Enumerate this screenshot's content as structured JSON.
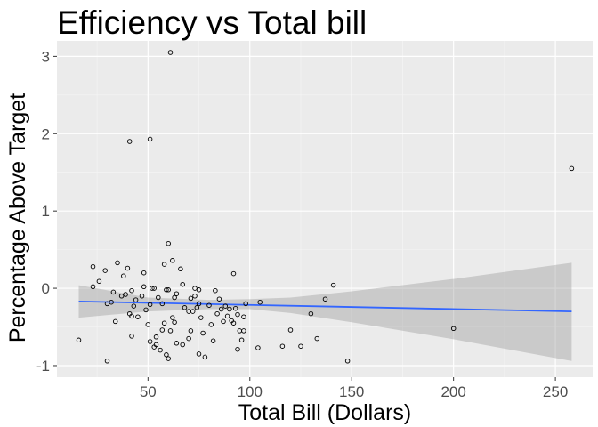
{
  "chart_data": {
    "type": "scatter",
    "title": "Efficiency vs Total bill",
    "xlabel": "Total Bill (Dollars)",
    "ylabel": "Percentage Above Target",
    "xlim": [
      5.3,
      268.3
    ],
    "ylim": [
      -1.15,
      3.2
    ],
    "x_ticks": [
      50,
      100,
      150,
      200,
      250
    ],
    "y_ticks": [
      -1,
      0,
      1,
      2,
      3
    ],
    "grid": true,
    "legend": "none",
    "colors": {
      "panel_background": "#ebebeb",
      "grid_major": "#ffffff",
      "grid_minor": "#f5f5f5",
      "points": "#000000",
      "trend_line": "#3366ff",
      "confidence_band": "#999999"
    },
    "points": [
      {
        "x": 16,
        "y": -0.67
      },
      {
        "x": 23,
        "y": 0.28
      },
      {
        "x": 23,
        "y": 0.02
      },
      {
        "x": 26,
        "y": 0.09
      },
      {
        "x": 29,
        "y": 0.23
      },
      {
        "x": 30,
        "y": -0.94
      },
      {
        "x": 30,
        "y": -0.2
      },
      {
        "x": 32,
        "y": -0.18
      },
      {
        "x": 33,
        "y": -0.05
      },
      {
        "x": 34,
        "y": -0.43
      },
      {
        "x": 35,
        "y": 0.33
      },
      {
        "x": 37,
        "y": -0.1
      },
      {
        "x": 38,
        "y": 0.16
      },
      {
        "x": 39,
        "y": -0.08
      },
      {
        "x": 40,
        "y": 0.26
      },
      {
        "x": 41,
        "y": -0.33
      },
      {
        "x": 41,
        "y": 1.9
      },
      {
        "x": 42,
        "y": -0.36
      },
      {
        "x": 42,
        "y": -0.03
      },
      {
        "x": 42,
        "y": -0.62
      },
      {
        "x": 43,
        "y": -0.23
      },
      {
        "x": 44,
        "y": -0.15
      },
      {
        "x": 45,
        "y": -0.37
      },
      {
        "x": 47,
        "y": -0.1
      },
      {
        "x": 48,
        "y": 0.02
      },
      {
        "x": 48,
        "y": 0.2
      },
      {
        "x": 49,
        "y": -0.28
      },
      {
        "x": 50,
        "y": -0.47
      },
      {
        "x": 51,
        "y": -0.69
      },
      {
        "x": 51,
        "y": -0.21
      },
      {
        "x": 51,
        "y": 1.93
      },
      {
        "x": 52,
        "y": 0.0
      },
      {
        "x": 53,
        "y": 0.0
      },
      {
        "x": 53,
        "y": -0.76
      },
      {
        "x": 54,
        "y": -0.63
      },
      {
        "x": 54,
        "y": -0.73
      },
      {
        "x": 55,
        "y": -0.12
      },
      {
        "x": 56,
        "y": -0.8
      },
      {
        "x": 57,
        "y": -0.2
      },
      {
        "x": 57,
        "y": -0.54
      },
      {
        "x": 58,
        "y": 0.31
      },
      {
        "x": 58,
        "y": -0.45
      },
      {
        "x": 59,
        "y": -0.86
      },
      {
        "x": 59,
        "y": -0.02
      },
      {
        "x": 60,
        "y": 0.58
      },
      {
        "x": 60,
        "y": -0.02
      },
      {
        "x": 60,
        "y": -0.91
      },
      {
        "x": 61,
        "y": -0.55
      },
      {
        "x": 61,
        "y": 3.05
      },
      {
        "x": 62,
        "y": 0.36
      },
      {
        "x": 62,
        "y": -0.38
      },
      {
        "x": 63,
        "y": -0.44
      },
      {
        "x": 63,
        "y": -0.12
      },
      {
        "x": 64,
        "y": -0.07
      },
      {
        "x": 64,
        "y": -0.71
      },
      {
        "x": 66,
        "y": 0.25
      },
      {
        "x": 67,
        "y": 0.05
      },
      {
        "x": 67,
        "y": -0.73
      },
      {
        "x": 68,
        "y": -0.25
      },
      {
        "x": 70,
        "y": -0.3
      },
      {
        "x": 70,
        "y": -0.65
      },
      {
        "x": 71,
        "y": -0.13
      },
      {
        "x": 71,
        "y": -0.55
      },
      {
        "x": 72,
        "y": -0.3
      },
      {
        "x": 73,
        "y": 0.0
      },
      {
        "x": 73,
        "y": -0.1
      },
      {
        "x": 74,
        "y": -0.25
      },
      {
        "x": 75,
        "y": -0.2
      },
      {
        "x": 75,
        "y": -0.85
      },
      {
        "x": 75,
        "y": -0.02
      },
      {
        "x": 76,
        "y": -0.38
      },
      {
        "x": 77,
        "y": -0.58
      },
      {
        "x": 78,
        "y": -0.89
      },
      {
        "x": 80,
        "y": -0.22
      },
      {
        "x": 81,
        "y": -0.47
      },
      {
        "x": 82,
        "y": -0.68
      },
      {
        "x": 83,
        "y": -0.03
      },
      {
        "x": 84,
        "y": -0.33
      },
      {
        "x": 85,
        "y": -0.14
      },
      {
        "x": 86,
        "y": -0.27
      },
      {
        "x": 87,
        "y": -0.43
      },
      {
        "x": 88,
        "y": -0.23
      },
      {
        "x": 89,
        "y": -0.36
      },
      {
        "x": 90,
        "y": -0.27
      },
      {
        "x": 91,
        "y": -0.42
      },
      {
        "x": 92,
        "y": 0.19
      },
      {
        "x": 92,
        "y": -0.45
      },
      {
        "x": 93,
        "y": -0.26
      },
      {
        "x": 94,
        "y": -0.79
      },
      {
        "x": 94,
        "y": -0.34
      },
      {
        "x": 95,
        "y": -0.55
      },
      {
        "x": 96,
        "y": -0.67
      },
      {
        "x": 97,
        "y": -0.55
      },
      {
        "x": 97,
        "y": -0.37
      },
      {
        "x": 98,
        "y": -0.2
      },
      {
        "x": 104,
        "y": -0.77
      },
      {
        "x": 105,
        "y": -0.18
      },
      {
        "x": 116,
        "y": -0.75
      },
      {
        "x": 120,
        "y": -0.54
      },
      {
        "x": 125,
        "y": -0.75
      },
      {
        "x": 130,
        "y": -0.33
      },
      {
        "x": 133,
        "y": -0.65
      },
      {
        "x": 137,
        "y": -0.14
      },
      {
        "x": 141,
        "y": 0.04
      },
      {
        "x": 148,
        "y": -0.94
      },
      {
        "x": 200,
        "y": -0.52
      },
      {
        "x": 258,
        "y": 1.55
      }
    ],
    "trend": {
      "x": [
        16,
        258
      ],
      "y": [
        -0.17,
        -0.3
      ]
    },
    "confidence_band": {
      "x": [
        16,
        50,
        80,
        100,
        120,
        150,
        200,
        258
      ],
      "lower": [
        -0.38,
        -0.3,
        -0.27,
        -0.27,
        -0.32,
        -0.44,
        -0.66,
        -0.94
      ],
      "upper": [
        0.04,
        -0.12,
        -0.15,
        -0.14,
        -0.12,
        -0.04,
        0.12,
        0.33
      ]
    }
  }
}
